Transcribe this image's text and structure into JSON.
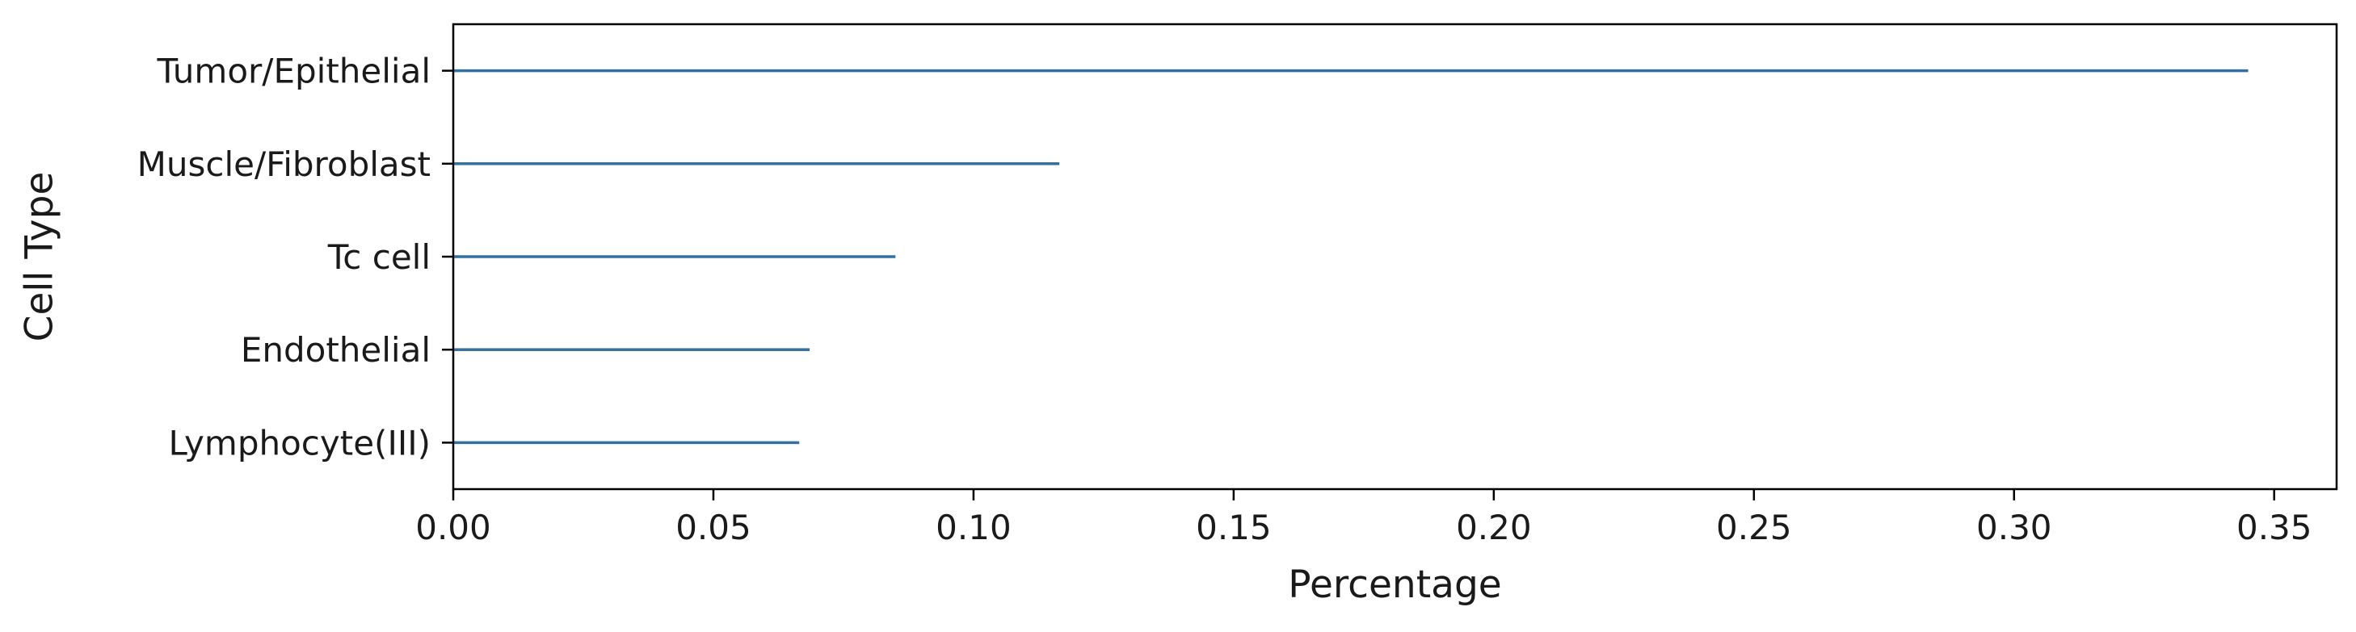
{
  "chart_data": {
    "type": "bar",
    "orientation": "horizontal",
    "categories": [
      "Tumor/Epithelial",
      "Muscle/Fibroblast",
      "Tc cell",
      "Endothelial",
      "Lymphocyte(III)"
    ],
    "values": [
      0.345,
      0.1165,
      0.085,
      0.0685,
      0.0665
    ],
    "xlabel": "Percentage",
    "ylabel": "Cell Type",
    "xlim": [
      0,
      0.362
    ],
    "xticks": [
      "0.00",
      "0.05",
      "0.10",
      "0.15",
      "0.20",
      "0.25",
      "0.30",
      "0.35"
    ],
    "grid": false,
    "bar_color": "#31709f"
  }
}
